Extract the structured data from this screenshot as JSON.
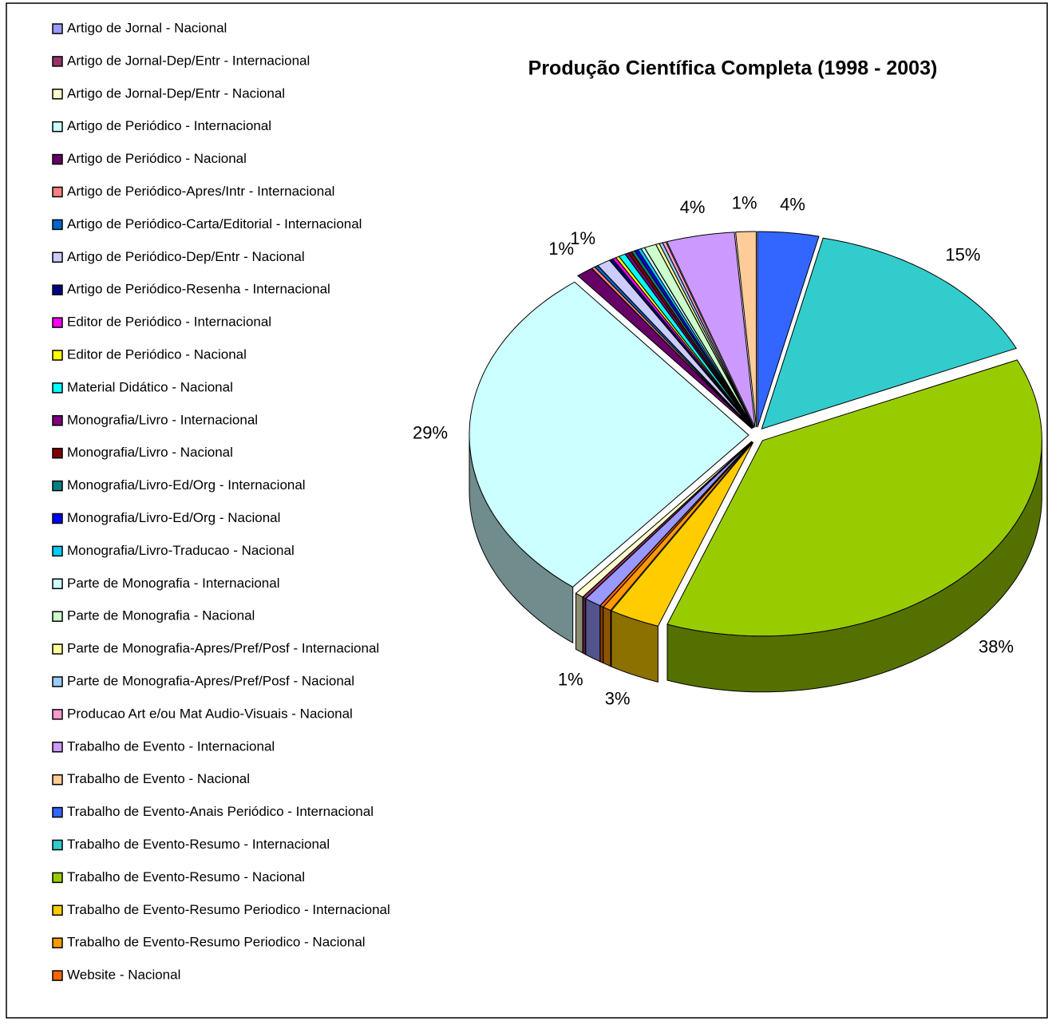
{
  "chart_data": {
    "type": "pie",
    "title": "Produção Científica Completa (1998 - 2003)",
    "categories": [
      "Artigo de Jornal - Nacional",
      "Artigo de Jornal-Dep/Entr - Internacional",
      "Artigo de Jornal-Dep/Entr - Nacional",
      "Artigo de Periódico - Internacional",
      "Artigo de Periódico - Nacional",
      "Artigo de Periódico-Apres/Intr - Internacional",
      "Artigo de Periódico-Carta/Editorial - Internacional",
      "Artigo de Periódico-Dep/Entr - Nacional",
      "Artigo de Periódico-Resenha - Internacional",
      "Editor de Periódico - Internacional",
      "Editor de Periódico - Nacional",
      "Material Didático - Nacional",
      "Monografia/Livro - Internacional",
      "Monografia/Livro - Nacional",
      "Monografia/Livro-Ed/Org - Internacional",
      "Monografia/Livro-Ed/Org - Nacional",
      "Monografia/Livro-Traducao - Nacional",
      "Parte de Monografia - Internacional",
      "Parte de Monografia - Nacional",
      "Parte de Monografia-Apres/Pref/Posf - Internacional",
      "Parte de Monografia-Apres/Pref/Posf - Nacional",
      "Producao Art e/ou Mat Audio-Visuais - Nacional",
      "Trabalho de Evento - Internacional",
      "Trabalho de Evento - Nacional",
      "Trabalho de Evento-Anais Periódico - Internacional",
      "Trabalho de Evento-Resumo - Internacional",
      "Trabalho de Evento-Resumo - Nacional",
      "Trabalho de Evento-Resumo Periodico - Internacional",
      "Trabalho de Evento-Resumo Periodico - Nacional",
      "Website - Nacional"
    ],
    "values": [
      1,
      0.2,
      0.5,
      29,
      1,
      0.2,
      0.2,
      0.8,
      0.2,
      0.2,
      0.2,
      0.4,
      0.2,
      0.2,
      0.2,
      0.2,
      0.2,
      0.2,
      0.7,
      0.2,
      0.2,
      0.2,
      4,
      1.2,
      3.6,
      15,
      38,
      3,
      0.5,
      0.2
    ],
    "value_labels": [
      "1%",
      null,
      null,
      "29%",
      "1%",
      null,
      null,
      "1%",
      null,
      null,
      null,
      null,
      null,
      null,
      null,
      null,
      null,
      null,
      null,
      null,
      null,
      null,
      "4%",
      "1%",
      "4%",
      "15%",
      "38%",
      "3%",
      null,
      null
    ],
    "colors": [
      "#9999ff",
      "#993366",
      "#ffffcc",
      "#ccffff",
      "#660066",
      "#ff8080",
      "#0066cc",
      "#ccccff",
      "#000080",
      "#ff00ff",
      "#ffff00",
      "#00ffff",
      "#800080",
      "#800000",
      "#008080",
      "#0000ff",
      "#00ccff",
      "#ccffff",
      "#ccffcc",
      "#ffff99",
      "#99ccff",
      "#ff99cc",
      "#cc99ff",
      "#ffcc99",
      "#3366ff",
      "#33cccc",
      "#99cc00",
      "#ffcc00",
      "#ff9900",
      "#ff6600"
    ]
  }
}
